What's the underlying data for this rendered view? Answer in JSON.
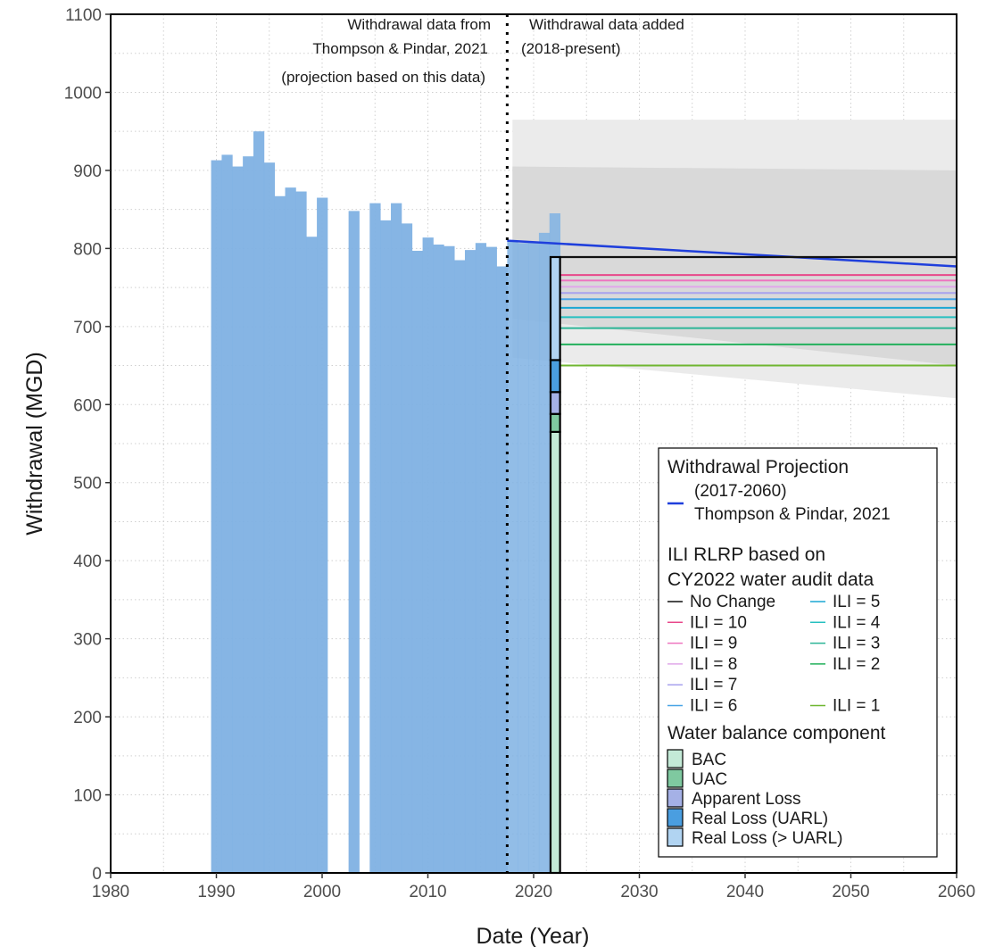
{
  "chart_data": {
    "type": "bar",
    "title": "",
    "xlabel": "Date (Year)",
    "ylabel": "Withdrawal (MGD)",
    "xlim": [
      1980,
      2060
    ],
    "ylim": [
      0,
      1100
    ],
    "x_ticks": [
      1980,
      1990,
      2000,
      2010,
      2020,
      2030,
      2040,
      2050,
      2060
    ],
    "y_ticks": [
      0,
      100,
      200,
      300,
      400,
      500,
      600,
      700,
      800,
      900,
      1000,
      1100
    ],
    "grid": true,
    "annotations": {
      "divider_year": 2017.5,
      "left_lines": [
        "Withdrawal data from",
        "Thompson & Pindar, 2021",
        "(projection based on this data)"
      ],
      "right_lines": [
        "Withdrawal data added",
        "(2018-present)"
      ]
    },
    "historical_withdrawal": {
      "color": "#7fb1e3",
      "years": [
        1990,
        1991,
        1992,
        1993,
        1994,
        1995,
        1996,
        1997,
        1998,
        1999,
        2000,
        2001,
        2002,
        2003,
        2004,
        2005,
        2006,
        2007,
        2008,
        2009,
        2010,
        2011,
        2012,
        2013,
        2014,
        2015,
        2016,
        2017,
        2018,
        2019,
        2020,
        2021,
        2022
      ],
      "values": [
        913,
        920,
        905,
        918,
        950,
        910,
        867,
        878,
        873,
        815,
        865,
        null,
        null,
        848,
        null,
        858,
        836,
        858,
        832,
        797,
        814,
        805,
        803,
        785,
        798,
        807,
        802,
        777,
        810,
        807,
        808,
        820,
        845
      ]
    },
    "projection_bands": {
      "years": [
        2018,
        2060
      ],
      "outer_upper": [
        965,
        965
      ],
      "outer_lower": [
        660,
        608
      ],
      "inner_upper": [
        905,
        900
      ],
      "inner_lower": [
        710,
        650
      ],
      "outer_color": "#ebebeb",
      "inner_color": "#d9d9d9"
    },
    "series": [
      {
        "name": "Thompson & Pindar, 2021",
        "color": "#1f3fdc",
        "x": [
          2017.5,
          2060
        ],
        "values": [
          810,
          777
        ]
      }
    ],
    "ili_lines": [
      {
        "name": "No Change",
        "value": 789,
        "color": "#111111"
      },
      {
        "name": "ILI = 10",
        "value": 766,
        "color": "#e8478a"
      },
      {
        "name": "ILI = 9",
        "value": 759,
        "color": "#ee75bf"
      },
      {
        "name": "ILI = 8",
        "value": 751,
        "color": "#e1a8ea"
      },
      {
        "name": "ILI = 7",
        "value": 743,
        "color": "#a8a2ee"
      },
      {
        "name": "ILI = 6",
        "value": 735,
        "color": "#48a4e6"
      },
      {
        "name": "ILI = 5",
        "value": 724,
        "color": "#1ba7d3"
      },
      {
        "name": "ILI = 4",
        "value": 712,
        "color": "#26c0c0"
      },
      {
        "name": "ILI = 3",
        "value": 698,
        "color": "#2cb596"
      },
      {
        "name": "ILI = 2",
        "value": 677,
        "color": "#23b05c"
      },
      {
        "name": "ILI = 1",
        "value": 650,
        "color": "#6fb630"
      }
    ],
    "ili_x_range": [
      2022.5,
      2060
    ],
    "water_balance": {
      "year": 2022,
      "x_range": [
        2021.6,
        2022.5
      ],
      "components": [
        {
          "name": "BAC",
          "from": 0,
          "to": 565,
          "color": "#c4ead7"
        },
        {
          "name": "UAC",
          "from": 565,
          "to": 588,
          "color": "#7fc9a0"
        },
        {
          "name": "Apparent Loss",
          "from": 588,
          "to": 616,
          "color": "#a5b1e6"
        },
        {
          "name": "Real Loss (UARL)",
          "from": 616,
          "to": 657,
          "color": "#4a9ee0"
        },
        {
          "name": "Real Loss (> UARL)",
          "from": 657,
          "to": 789,
          "color": "#b1d4f2"
        }
      ]
    },
    "legend": {
      "placement": "bottom-right",
      "projection_title": "Withdrawal Projection",
      "projection_label_lines": [
        "(2017-2060)",
        "Thompson & Pindar, 2021"
      ],
      "ili_title_lines": [
        "ILI RLRP based on",
        "CY2022 water audit data"
      ],
      "water_balance_title": "Water balance component"
    }
  }
}
